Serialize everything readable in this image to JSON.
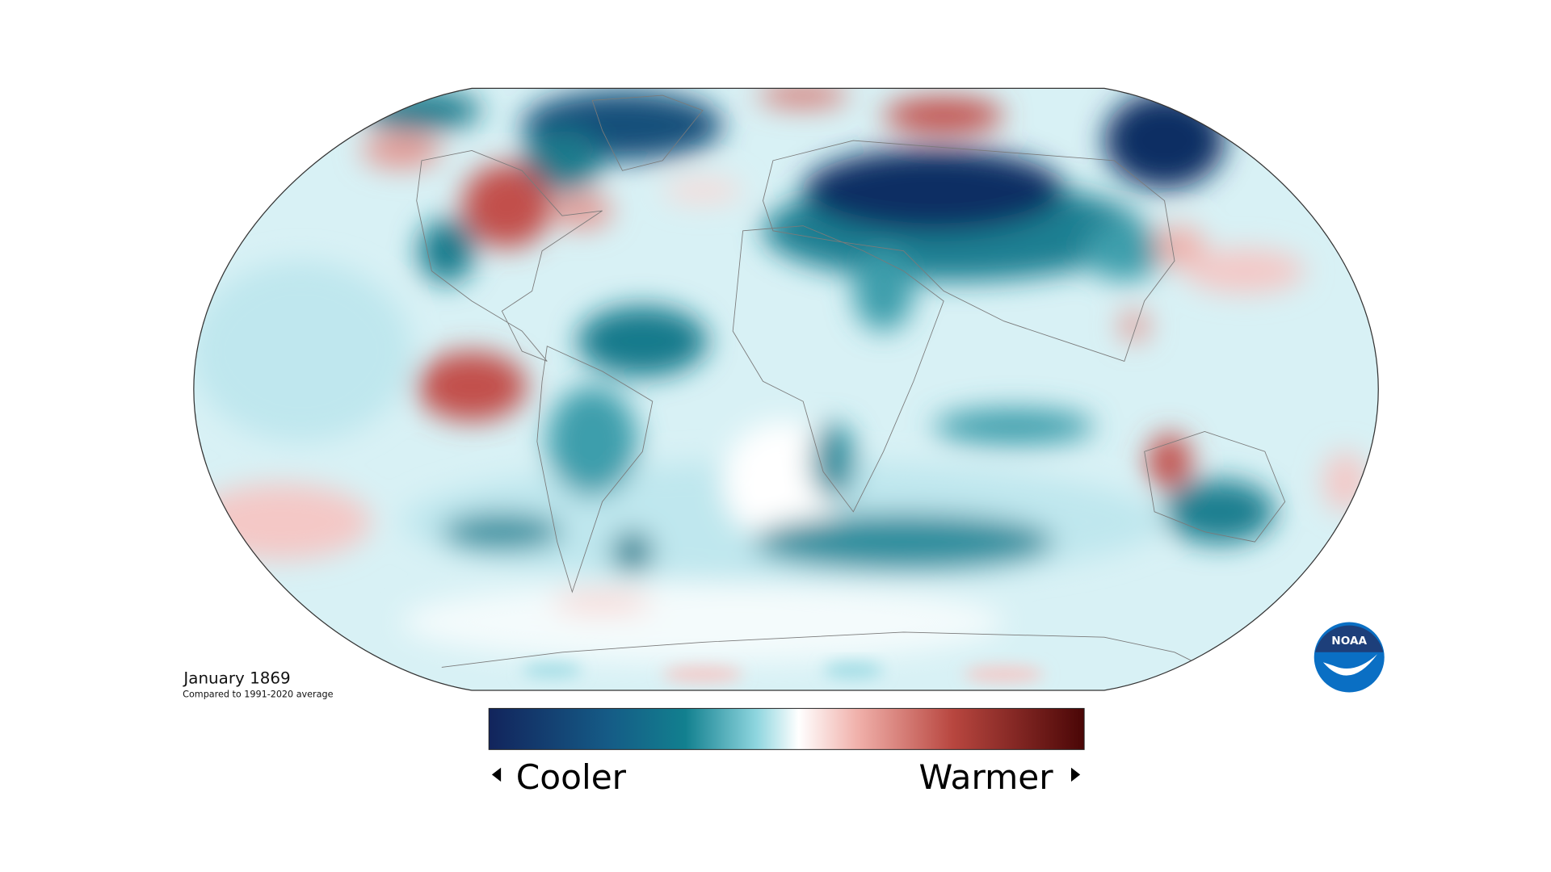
{
  "map": {
    "title": "January 1869",
    "subtitle": "Compared to 1991-2020 average"
  },
  "legend": {
    "low_label": "Cooler",
    "high_label": "Warmer"
  },
  "logo": {
    "text": "NOAA"
  }
}
